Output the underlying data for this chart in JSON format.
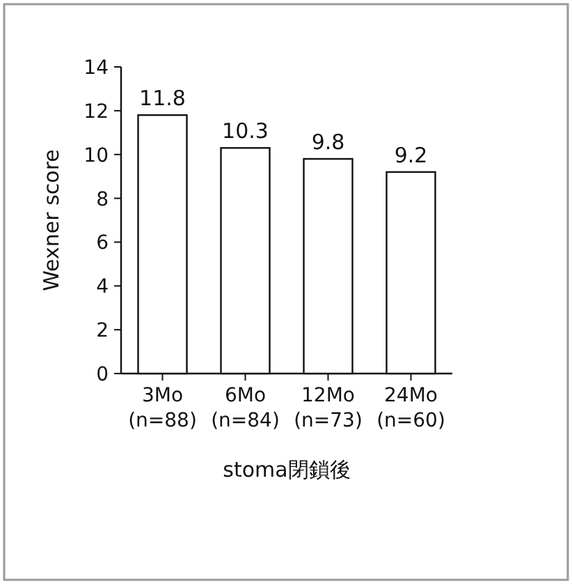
{
  "chart_data": {
    "type": "bar",
    "ylabel": "Wexner score",
    "xlabel": "stoma閉鎖後",
    "categories": [
      "3Mo (n=88)",
      "6Mo (n=84)",
      "12Mo (n=73)",
      "24Mo (n=60)"
    ],
    "values": [
      11.8,
      10.3,
      9.8,
      9.2
    ],
    "color": "#ffffff",
    "ylim": [
      0,
      14
    ],
    "yticks": [
      0,
      2,
      4,
      6,
      8,
      10,
      12,
      14
    ],
    "data_labels": true
  }
}
